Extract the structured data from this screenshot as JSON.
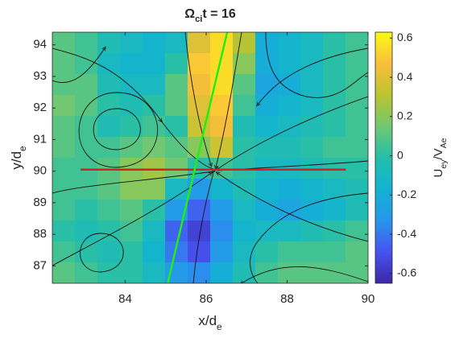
{
  "chart_data": {
    "type": "heatmap",
    "title": [
      "Ω",
      "ci",
      "t = 16"
    ],
    "xlabel": [
      "x/d",
      "e"
    ],
    "ylabel": [
      "y/d",
      "e"
    ],
    "colorbar_label": [
      "U",
      "ey",
      "/V",
      "Ae"
    ],
    "xlim": [
      82.2,
      90
    ],
    "ylim": [
      86.45,
      94.4
    ],
    "xticks": [
      84,
      86,
      88,
      90
    ],
    "yticks": [
      87,
      88,
      89,
      90,
      91,
      92,
      93,
      94
    ],
    "clim": [
      -0.65,
      0.63
    ],
    "cticks": [
      -0.6,
      -0.4,
      -0.2,
      0,
      0.2,
      0.4,
      0.6
    ],
    "colormap": [
      "#3e26a8",
      "#4553f0",
      "#2796ec",
      "#12b3d2",
      "#24bea9",
      "#71c871",
      "#bbc42f",
      "#fbbe3d",
      "#f9fa14"
    ],
    "z": [
      [
        0.1,
        0.05,
        -0.05,
        -0.1,
        -0.15,
        -0.1,
        0.4,
        0.55,
        0.3,
        -0.2,
        -0.15,
        -0.1,
        0.0,
        0.05
      ],
      [
        0.1,
        0.05,
        -0.1,
        -0.15,
        -0.15,
        0.0,
        0.5,
        0.55,
        0.2,
        -0.2,
        -0.15,
        -0.1,
        0.0,
        0.05
      ],
      [
        0.1,
        0.1,
        -0.05,
        -0.1,
        -0.1,
        0.1,
        0.45,
        0.55,
        0.1,
        -0.25,
        -0.2,
        -0.1,
        0.0,
        0.05
      ],
      [
        0.15,
        0.1,
        0.0,
        -0.05,
        0.0,
        0.1,
        0.4,
        0.5,
        0.05,
        -0.2,
        -0.15,
        -0.1,
        0.0,
        0.05
      ],
      [
        0.1,
        0.05,
        -0.05,
        0.0,
        0.05,
        0.0,
        0.35,
        0.45,
        -0.05,
        -0.15,
        -0.1,
        -0.05,
        0.0,
        0.05
      ],
      [
        0.1,
        0.05,
        0.05,
        0.1,
        0.15,
        0.1,
        0.2,
        0.35,
        0.0,
        -0.05,
        -0.05,
        0.0,
        0.05,
        0.05
      ],
      [
        0.05,
        0.05,
        0.1,
        0.2,
        0.25,
        0.15,
        0.0,
        0.05,
        0.0,
        -0.1,
        -0.1,
        -0.05,
        0.0,
        0.0
      ],
      [
        0.05,
        0.05,
        0.1,
        0.2,
        0.2,
        -0.1,
        -0.3,
        -0.15,
        -0.05,
        -0.15,
        -0.2,
        -0.15,
        -0.1,
        -0.05
      ],
      [
        0.05,
        0.0,
        0.05,
        0.1,
        0.0,
        -0.3,
        -0.45,
        -0.3,
        -0.1,
        -0.2,
        -0.25,
        -0.2,
        -0.15,
        -0.05
      ],
      [
        0.0,
        -0.05,
        0.0,
        0.05,
        -0.1,
        -0.45,
        -0.55,
        -0.35,
        -0.15,
        -0.1,
        -0.1,
        -0.05,
        0.0,
        0.05
      ],
      [
        0.05,
        0.0,
        -0.05,
        0.0,
        -0.15,
        -0.4,
        -0.5,
        -0.3,
        -0.1,
        0.0,
        0.05,
        0.05,
        0.05,
        0.1
      ],
      [
        0.1,
        0.05,
        0.0,
        0.0,
        -0.1,
        -0.3,
        -0.35,
        -0.2,
        -0.05,
        0.05,
        0.1,
        0.1,
        0.1,
        0.1
      ]
    ],
    "lines": [
      {
        "color": "#d62020",
        "x": [
          82.9,
          89.45
        ],
        "y": [
          90.05,
          90.05
        ]
      },
      {
        "color": "#22ee11",
        "x": [
          85.05,
          86.52
        ],
        "y": [
          86.45,
          94.4
        ]
      }
    ]
  }
}
